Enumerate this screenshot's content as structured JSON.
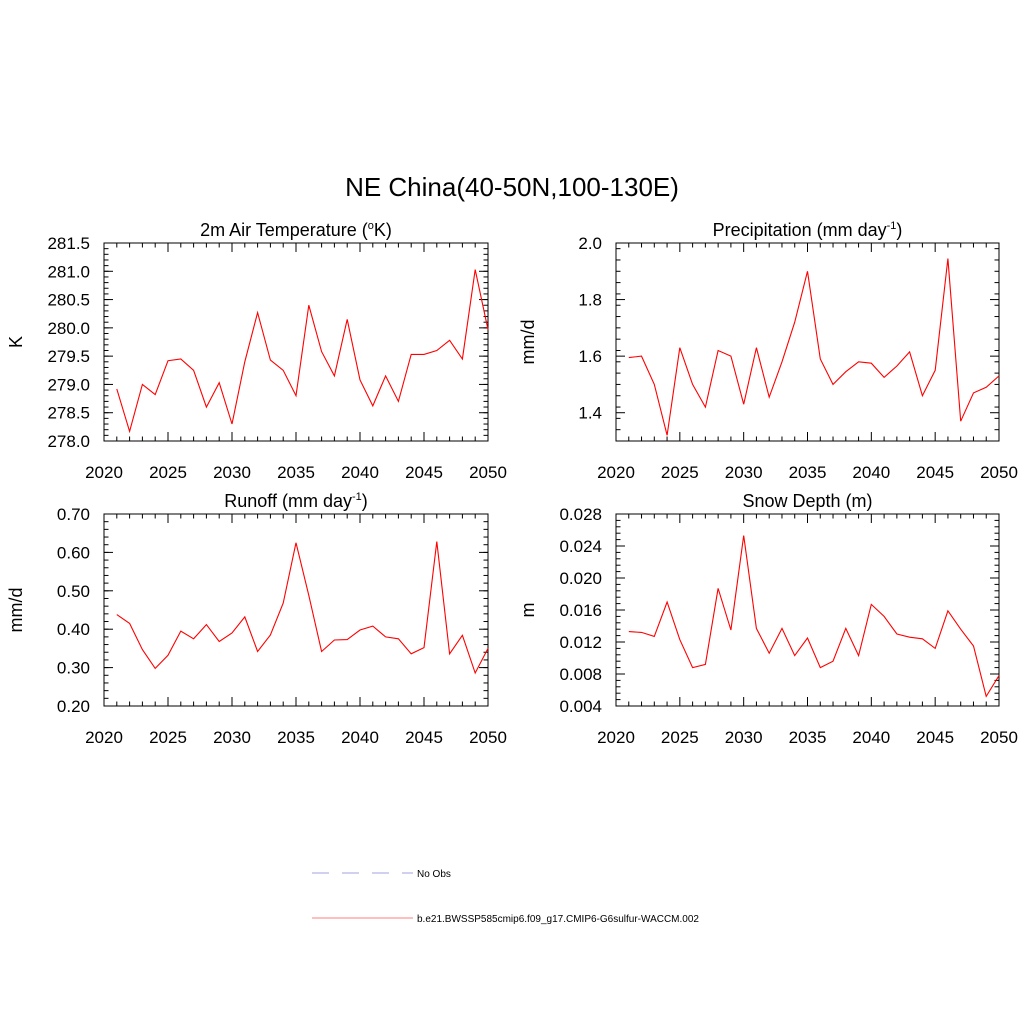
{
  "figure": {
    "title": "NE China(40-50N,100-130E)"
  },
  "chart_data": [
    {
      "type": "line",
      "title_main": "2m Air Temperature (",
      "title_sup1": "o",
      "title_end": "K)",
      "ylabel": "K",
      "xlim": [
        2020,
        2050
      ],
      "ylim": [
        278.0,
        281.5
      ],
      "xticks": [
        2020,
        2025,
        2030,
        2035,
        2040,
        2045,
        2050
      ],
      "xtick_labels": [
        "2020",
        "2025",
        "2030",
        "2035",
        "2040",
        "2045",
        "2050"
      ],
      "yticks": [
        278.0,
        278.5,
        279.0,
        279.5,
        280.0,
        280.5,
        281.0,
        281.5
      ],
      "ytick_labels": [
        "278.0",
        "278.5",
        "279.0",
        "279.5",
        "280.0",
        "280.5",
        "281.0",
        "281.5"
      ],
      "yminor": 0.1,
      "x": [
        2021,
        2022,
        2023,
        2024,
        2025,
        2026,
        2027,
        2028,
        2029,
        2030,
        2031,
        2032,
        2033,
        2034,
        2035,
        2036,
        2037,
        2038,
        2039,
        2040,
        2041,
        2042,
        2043,
        2044,
        2045,
        2046,
        2047,
        2048,
        2049,
        2050
      ],
      "series": [
        {
          "values": [
            278.92,
            278.17,
            279.0,
            278.82,
            279.42,
            279.45,
            279.25,
            278.6,
            279.03,
            278.3,
            279.4,
            280.27,
            279.43,
            279.25,
            278.8,
            280.4,
            279.58,
            279.15,
            280.15,
            279.08,
            278.62,
            279.15,
            278.7,
            279.53,
            279.53,
            279.6,
            279.78,
            279.45,
            281.03,
            279.97
          ],
          "color": "#ff0000"
        }
      ]
    },
    {
      "type": "line",
      "title_main": "Precipitation (mm day",
      "title_sup1": "-1",
      "title_end": ")",
      "ylabel": "mm/d",
      "xlim": [
        2020,
        2050
      ],
      "ylim": [
        1.3,
        2.0
      ],
      "xticks": [
        2020,
        2025,
        2030,
        2035,
        2040,
        2045,
        2050
      ],
      "xtick_labels": [
        "2020",
        "2025",
        "2030",
        "2035",
        "2040",
        "2045",
        "2050"
      ],
      "yticks": [
        1.4,
        1.6,
        1.8,
        2.0
      ],
      "ytick_labels": [
        "1.4",
        "1.6",
        "1.8",
        "2.0"
      ],
      "yminor": 0.04,
      "x": [
        2021,
        2022,
        2023,
        2024,
        2025,
        2026,
        2027,
        2028,
        2029,
        2030,
        2031,
        2032,
        2033,
        2034,
        2035,
        2036,
        2037,
        2038,
        2039,
        2040,
        2041,
        2042,
        2043,
        2044,
        2045,
        2046,
        2047,
        2048,
        2049,
        2050
      ],
      "series": [
        {
          "values": [
            1.595,
            1.6,
            1.5,
            1.32,
            1.63,
            1.5,
            1.42,
            1.62,
            1.6,
            1.43,
            1.63,
            1.455,
            1.58,
            1.72,
            1.9,
            1.59,
            1.5,
            1.545,
            1.58,
            1.575,
            1.525,
            1.565,
            1.615,
            1.46,
            1.55,
            1.945,
            1.37,
            1.47,
            1.49,
            1.53
          ],
          "color": "#ff0000"
        }
      ]
    },
    {
      "type": "line",
      "title_main": "Runoff (mm day",
      "title_sup1": "-1",
      "title_end": ")",
      "ylabel": "mm/d",
      "xlim": [
        2020,
        2050
      ],
      "ylim": [
        0.2,
        0.7
      ],
      "xticks": [
        2020,
        2025,
        2030,
        2035,
        2040,
        2045,
        2050
      ],
      "xtick_labels": [
        "2020",
        "2025",
        "2030",
        "2035",
        "2040",
        "2045",
        "2050"
      ],
      "yticks": [
        0.2,
        0.3,
        0.4,
        0.5,
        0.6,
        0.7
      ],
      "ytick_labels": [
        "0.20",
        "0.30",
        "0.40",
        "0.50",
        "0.60",
        "0.70"
      ],
      "yminor": 0.02,
      "x": [
        2021,
        2022,
        2023,
        2024,
        2025,
        2026,
        2027,
        2028,
        2029,
        2030,
        2031,
        2032,
        2033,
        2034,
        2035,
        2036,
        2037,
        2038,
        2039,
        2040,
        2041,
        2042,
        2043,
        2044,
        2045,
        2046,
        2047,
        2048,
        2049,
        2050
      ],
      "series": [
        {
          "values": [
            0.438,
            0.415,
            0.347,
            0.298,
            0.332,
            0.395,
            0.375,
            0.412,
            0.368,
            0.39,
            0.432,
            0.342,
            0.385,
            0.468,
            0.625,
            0.488,
            0.342,
            0.372,
            0.373,
            0.398,
            0.408,
            0.38,
            0.375,
            0.336,
            0.352,
            0.628,
            0.336,
            0.384,
            0.286,
            0.35
          ],
          "color": "#ff0000"
        }
      ]
    },
    {
      "type": "line",
      "title_main": "Snow Depth (m)",
      "title_sup1": "",
      "title_end": "",
      "ylabel": "m",
      "xlim": [
        2020,
        2050
      ],
      "ylim": [
        0.004,
        0.028
      ],
      "xticks": [
        2020,
        2025,
        2030,
        2035,
        2040,
        2045,
        2050
      ],
      "xtick_labels": [
        "2020",
        "2025",
        "2030",
        "2035",
        "2040",
        "2045",
        "2050"
      ],
      "yticks": [
        0.004,
        0.008,
        0.012,
        0.016,
        0.02,
        0.024,
        0.028
      ],
      "ytick_labels": [
        "0.004",
        "0.008",
        "0.012",
        "0.016",
        "0.020",
        "0.024",
        "0.028"
      ],
      "yminor": 0.0008,
      "x": [
        2021,
        2022,
        2023,
        2024,
        2025,
        2026,
        2027,
        2028,
        2029,
        2030,
        2031,
        2032,
        2033,
        2034,
        2035,
        2036,
        2037,
        2038,
        2039,
        2040,
        2041,
        2042,
        2043,
        2044,
        2045,
        2046,
        2047,
        2048,
        2049,
        2050
      ],
      "series": [
        {
          "values": [
            0.0133,
            0.0132,
            0.0127,
            0.017,
            0.0123,
            0.0088,
            0.0092,
            0.0187,
            0.0135,
            0.0253,
            0.0137,
            0.0106,
            0.0137,
            0.0103,
            0.0125,
            0.0088,
            0.0096,
            0.0137,
            0.0103,
            0.0167,
            0.0152,
            0.013,
            0.0126,
            0.0124,
            0.0112,
            0.0159,
            0.0136,
            0.0115,
            0.0052,
            0.0078
          ],
          "color": "#ff0000"
        }
      ]
    }
  ],
  "legend": {
    "items": [
      {
        "label": "No Obs",
        "color": "#b3b3e6",
        "style": "dashed"
      },
      {
        "label": "b.e21.BWSSP585cmip6.f09_g17.CMIP6-G6sulfur-WACCM.002",
        "color": "#ff9999",
        "style": "solid"
      }
    ]
  }
}
